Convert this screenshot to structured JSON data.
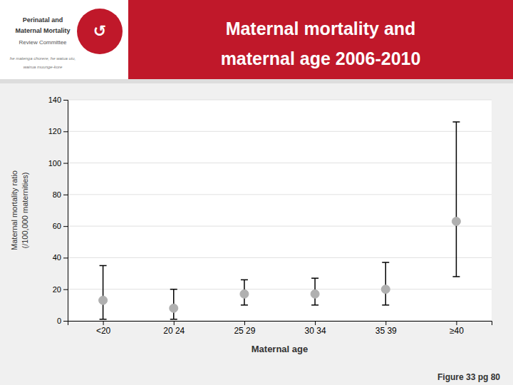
{
  "chart_data": {
    "type": "errorbar",
    "title": "Maternal mortality and\nmaternal age 2006-2010",
    "categories": [
      "<20",
      "20 24",
      "25 29",
      "30 34",
      "35 39",
      "≥40"
    ],
    "values": [
      13,
      8,
      17,
      17,
      20,
      63
    ],
    "ci_lower": [
      1,
      1,
      10,
      10,
      10,
      28
    ],
    "ci_upper": [
      35,
      20,
      26,
      27,
      37,
      126
    ],
    "color": "#b0b0b0",
    "ylabel": "Maternal mortality ratio\n(/100,000 maternities)",
    "xlabel": "Maternal age",
    "ylim": [
      0,
      140
    ],
    "yticks": [
      0,
      20,
      40,
      60,
      80,
      100,
      120,
      140
    ],
    "grid": true,
    "annotations": [
      "↺",
      "Perinatal and",
      "Maternal Mortality",
      "Review Committee",
      "he matenga chorere, he waiua uiu,",
      "wairua muunge-kore",
      "Figure 33 pg 80"
    ]
  }
}
